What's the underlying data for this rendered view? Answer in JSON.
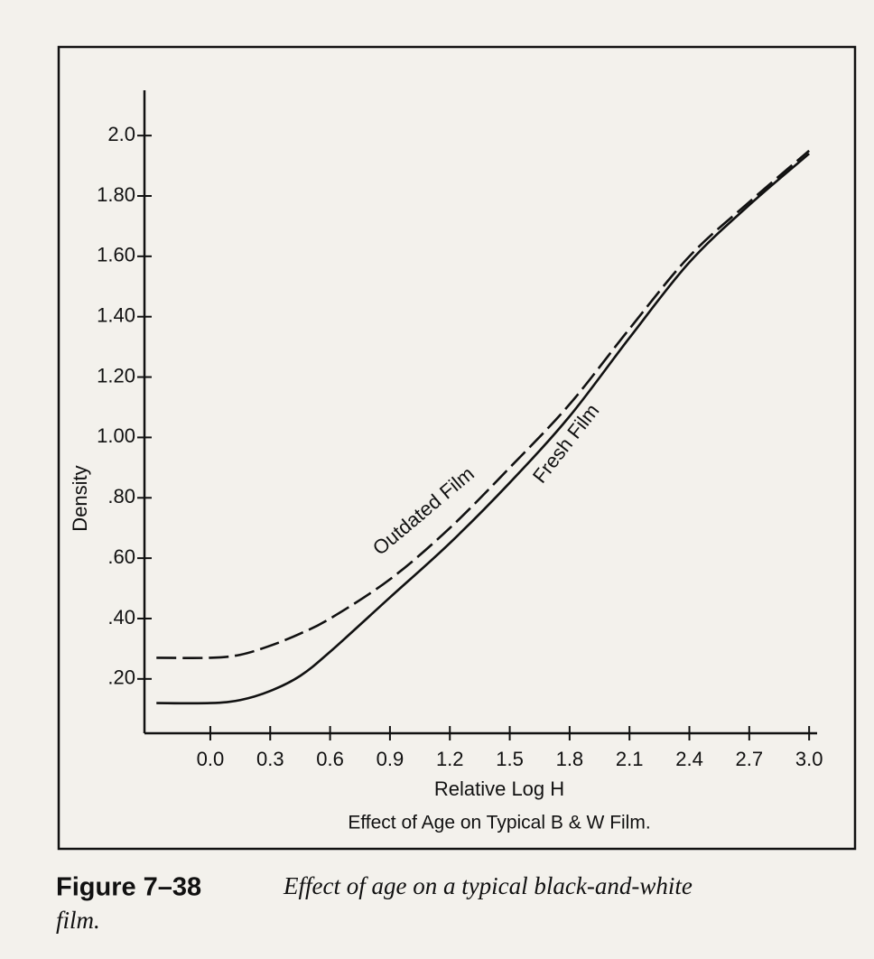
{
  "chart_data": {
    "type": "line",
    "y_label": "Density",
    "x_label": "Relative Log H",
    "subtitle": "Effect of Age on Typical B & W Film.",
    "caption_label": "Figure 7–38",
    "caption_text": "Effect of age on a typical black-and-white",
    "caption_text_end": "film.",
    "x": [
      -0.27,
      0.0,
      0.15,
      0.3,
      0.45,
      0.6,
      0.9,
      1.2,
      1.5,
      1.8,
      2.1,
      2.4,
      2.7,
      3.0
    ],
    "series": [
      {
        "name": "Fresh Film",
        "color": "#111111",
        "dash": false,
        "values": [
          0.12,
          0.12,
          0.13,
          0.16,
          0.21,
          0.29,
          0.47,
          0.65,
          0.85,
          1.07,
          1.33,
          1.58,
          1.77,
          1.94
        ]
      },
      {
        "name": "Outdated Film",
        "color": "#111111",
        "dash": true,
        "values": [
          0.27,
          0.27,
          0.28,
          0.31,
          0.35,
          0.4,
          0.53,
          0.7,
          0.9,
          1.11,
          1.36,
          1.6,
          1.78,
          1.95
        ]
      }
    ],
    "xlim": [
      -0.33,
      3.04
    ],
    "ylim": [
      0.02,
      2.15
    ],
    "xticks": [
      {
        "value": 0,
        "label": "0.0"
      },
      0.3,
      0.6,
      0.9,
      1.2,
      1.5,
      1.8,
      2.1,
      2.4,
      2.7,
      {
        "value": 3,
        "label": "3.0"
      }
    ],
    "yticks": [
      {
        "value": 0.2,
        "label": ".20"
      },
      {
        "value": 0.4,
        "label": ".40"
      },
      {
        "value": 0.6,
        "label": ".60"
      },
      {
        "value": 0.8,
        "label": ".80"
      },
      {
        "value": 1,
        "label": "1.00"
      },
      {
        "value": 1.2,
        "label": "1.20"
      },
      {
        "value": 1.4,
        "label": "1.40"
      },
      {
        "value": 1.6,
        "label": "1.60"
      },
      {
        "value": 1.8,
        "label": "1.80"
      },
      {
        "value": 2,
        "label": "2.0"
      }
    ],
    "grid": false
  }
}
